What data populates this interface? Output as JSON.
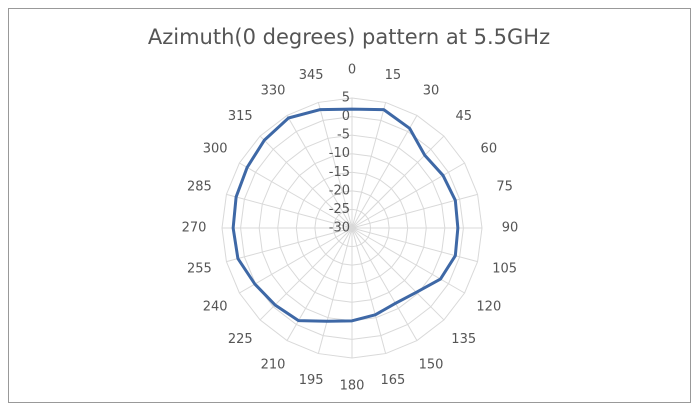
{
  "chart_data": {
    "type": "radar",
    "title": "Azimuth(0 degrees) pattern at 5.5GHz",
    "categories": [
      "0",
      "15",
      "30",
      "45",
      "60",
      "75",
      "90",
      "105",
      "120",
      "135",
      "150",
      "165",
      "180",
      "195",
      "210",
      "225",
      "240",
      "255",
      "270",
      "285",
      "300",
      "315",
      "330",
      "345"
    ],
    "series": [
      {
        "color": "#3e68a6",
        "values": [
          2,
          3,
          1,
          -2.3,
          -1.7,
          -1.2,
          -1.5,
          -1.2,
          -2.5,
          -5.5,
          -6.6,
          -5.8,
          -5,
          -4,
          -1.2,
          -0.7,
          0.2,
          1.8,
          2,
          2.3,
          2.6,
          3.4,
          4.2,
          3
        ]
      }
    ],
    "ylim": [
      -30,
      5
    ],
    "yticks": [
      -30,
      -25,
      -20,
      -15,
      -10,
      -5,
      0,
      5
    ],
    "grid": true
  }
}
